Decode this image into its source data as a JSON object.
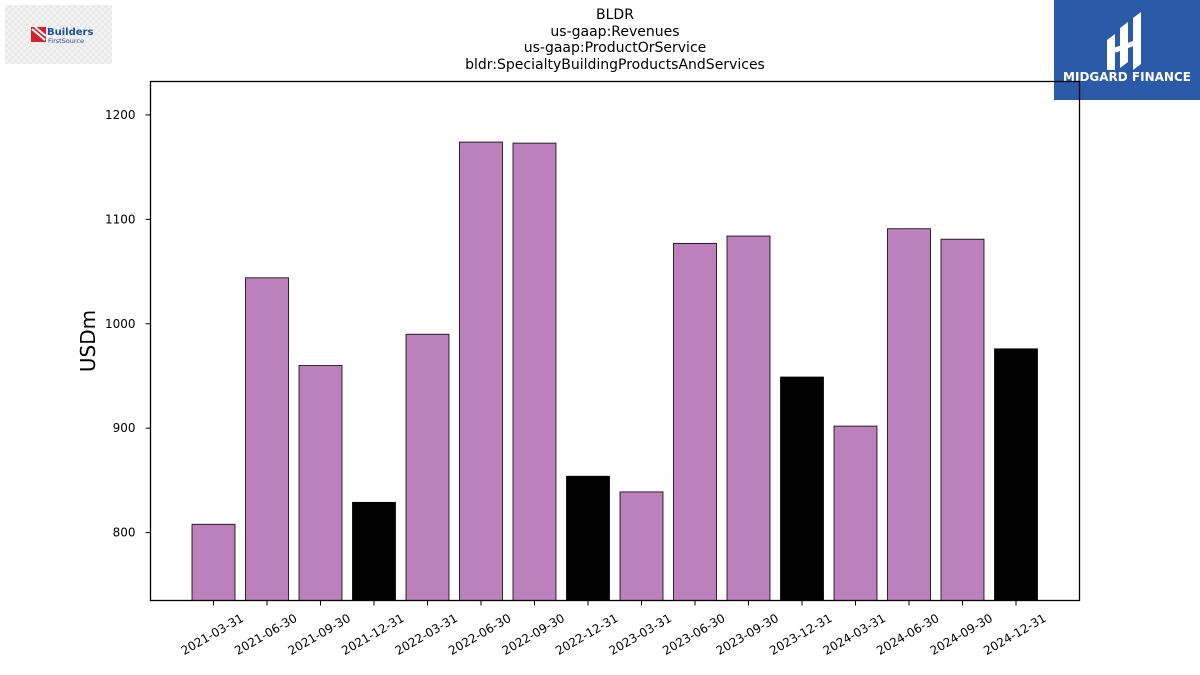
{
  "chart_data": {
    "type": "bar",
    "title_lines": [
      "BLDR",
      "us-gaap:Revenues",
      "us-gaap:ProductOrService",
      "bldr:SpecialtyBuildingProductsAndServices"
    ],
    "xlabel": "",
    "ylabel": "USDm",
    "ylim": [
      735,
      1232
    ],
    "yticks": [
      800,
      900,
      1000,
      1100,
      1200
    ],
    "categories": [
      "2021-03-31",
      "2021-06-30",
      "2021-09-30",
      "2021-12-31",
      "2022-03-31",
      "2022-06-30",
      "2022-09-30",
      "2022-12-31",
      "2023-03-31",
      "2023-06-30",
      "2023-09-30",
      "2023-12-31",
      "2024-03-31",
      "2024-06-30",
      "2024-09-30",
      "2024-12-31"
    ],
    "values": [
      808,
      1044,
      960,
      829,
      990,
      1174,
      1173,
      854,
      839,
      1077,
      1084,
      949,
      902,
      1091,
      1081,
      976
    ],
    "bar_colors": [
      "#bc80bd",
      "#bc80bd",
      "#bc80bd",
      "#000000",
      "#bc80bd",
      "#bc80bd",
      "#bc80bd",
      "#000000",
      "#bc80bd",
      "#bc80bd",
      "#bc80bd",
      "#000000",
      "#bc80bd",
      "#bc80bd",
      "#bc80bd",
      "#000000"
    ],
    "grid": false,
    "legend": "none"
  },
  "logos": {
    "left": {
      "text_line1": "Builders",
      "text_line2": "FirstSource",
      "accent_color": "#d6202c",
      "text_color": "#1b4f9c"
    },
    "right": {
      "text": "MIDGARD FINANCE",
      "bg_color": "#2b5aa8"
    }
  }
}
